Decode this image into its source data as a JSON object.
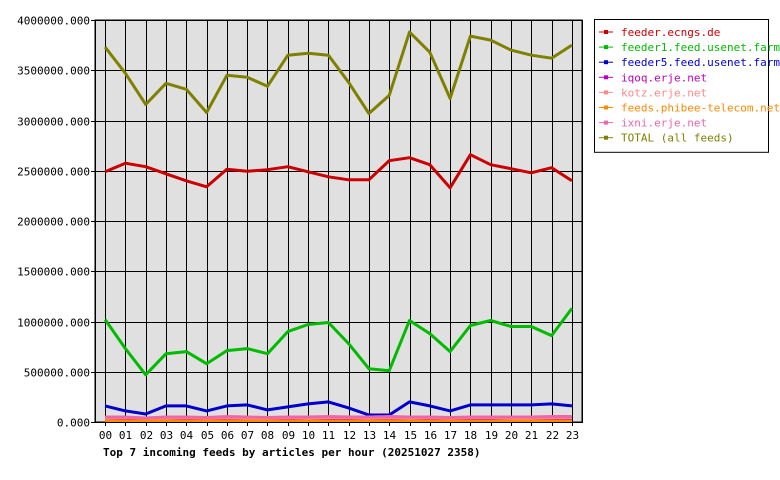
{
  "chart_data": {
    "type": "line",
    "title": "Top 7 incoming feeds by articles per hour (20251027 2358)",
    "xlabel": "",
    "ylabel": "",
    "ylim": [
      0,
      4000000
    ],
    "yticks": [
      0,
      500000,
      1000000,
      1500000,
      2000000,
      2500000,
      3000000,
      3500000,
      4000000
    ],
    "ytick_labels": [
      "0.000",
      "500000.000",
      "1000000.000",
      "1500000.000",
      "2000000.000",
      "2500000.000",
      "3000000.000",
      "3500000.000",
      "4000000.000"
    ],
    "categories": [
      "00",
      "01",
      "02",
      "03",
      "04",
      "05",
      "06",
      "07",
      "08",
      "09",
      "10",
      "11",
      "12",
      "13",
      "14",
      "15",
      "16",
      "17",
      "18",
      "19",
      "20",
      "21",
      "22",
      "23"
    ],
    "grid": true,
    "legend_position": "right",
    "plot_background": "#e0e0e0",
    "series": [
      {
        "name": "feeder.ecngs.de",
        "color": "#cc0000",
        "values": [
          2490000,
          2575000,
          2540000,
          2470000,
          2400000,
          2340000,
          2515000,
          2495000,
          2510000,
          2540000,
          2490000,
          2440000,
          2410000,
          2410000,
          2600000,
          2630000,
          2560000,
          2330000,
          2660000,
          2560000,
          2520000,
          2480000,
          2530000,
          2400000
        ]
      },
      {
        "name": "feeder1.feed.usenet.farm",
        "color": "#00bb00",
        "values": [
          1020000,
          730000,
          470000,
          680000,
          700000,
          580000,
          710000,
          730000,
          680000,
          900000,
          970000,
          990000,
          780000,
          530000,
          510000,
          1010000,
          880000,
          700000,
          960000,
          1010000,
          950000,
          950000,
          860000,
          1130000
        ]
      },
      {
        "name": "feeder5.feed.usenet.farm",
        "color": "#0000cc",
        "values": [
          160000,
          110000,
          80000,
          160000,
          160000,
          110000,
          160000,
          170000,
          120000,
          150000,
          180000,
          200000,
          140000,
          70000,
          70000,
          200000,
          160000,
          110000,
          170000,
          170000,
          170000,
          170000,
          180000,
          160000
        ]
      },
      {
        "name": "iqoq.erje.net",
        "color": "#bb00bb",
        "values": [
          30000,
          30000,
          20000,
          30000,
          30000,
          25000,
          30000,
          30000,
          30000,
          30000,
          30000,
          30000,
          30000,
          30000,
          30000,
          30000,
          30000,
          30000,
          30000,
          30000,
          30000,
          30000,
          30000,
          30000
        ]
      },
      {
        "name": "kotz.erje.net",
        "color": "#ff8888",
        "values": [
          40000,
          45000,
          40000,
          40000,
          45000,
          40000,
          45000,
          40000,
          40000,
          45000,
          40000,
          45000,
          45000,
          40000,
          45000,
          40000,
          45000,
          40000,
          45000,
          45000,
          40000,
          40000,
          45000,
          45000
        ]
      },
      {
        "name": "feeds.phibee-telecom.net",
        "color": "#ff8800",
        "values": [
          10000,
          10000,
          10000,
          10000,
          10000,
          10000,
          10000,
          10000,
          10000,
          10000,
          10000,
          10000,
          10000,
          10000,
          10000,
          10000,
          10000,
          10000,
          10000,
          10000,
          10000,
          10000,
          10000,
          10000
        ]
      },
      {
        "name": "ixni.erje.net",
        "color": "#ee66aa",
        "values": [
          50000,
          50000,
          40000,
          50000,
          50000,
          45000,
          55000,
          50000,
          45000,
          50000,
          50000,
          55000,
          50000,
          50000,
          55000,
          50000,
          50000,
          45000,
          50000,
          50000,
          50000,
          50000,
          55000,
          55000
        ]
      },
      {
        "name": "TOTAL (all feeds)",
        "color": "#808000",
        "values": [
          3730000,
          3470000,
          3160000,
          3370000,
          3310000,
          3080000,
          3450000,
          3430000,
          3340000,
          3650000,
          3670000,
          3650000,
          3380000,
          3070000,
          3250000,
          3880000,
          3680000,
          3220000,
          3840000,
          3800000,
          3700000,
          3650000,
          3620000,
          3750000
        ]
      }
    ]
  }
}
